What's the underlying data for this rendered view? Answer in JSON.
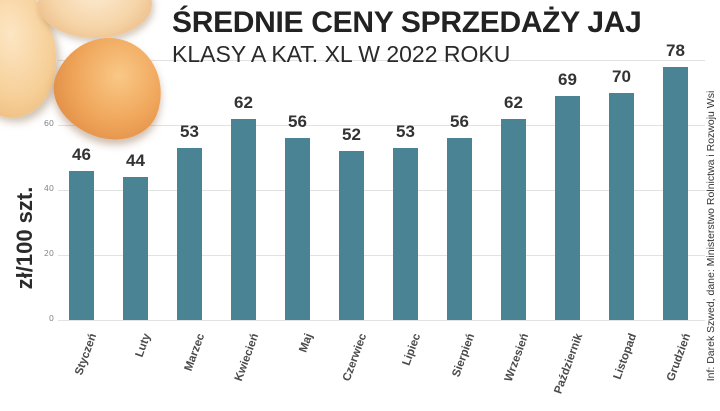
{
  "header": {
    "title": "ŚREDNIE CENY SPRZEDAŻY JAJ",
    "subtitle": "KLASY A KAT. XL W 2022 ROKU"
  },
  "axis": {
    "ylabel": "zł/100 szt.",
    "yticks": [
      "0",
      "20",
      "40",
      "60"
    ]
  },
  "credit": "Inf: Darek Szwed, dane: Ministerstwo Rolnictwa i Rozwoju Wsi",
  "colors": {
    "bar": "#4a8494",
    "title": "#222222",
    "gridline": "#e2e2e2"
  },
  "chart_data": {
    "type": "bar",
    "title": "ŚREDNIE CENY SPRZEDAŻY JAJ",
    "subtitle": "KLASY A KAT. XL W 2022 ROKU",
    "xlabel": "",
    "ylabel": "zł/100 szt.",
    "categories": [
      "Styczeń",
      "Luty",
      "Marzec",
      "Kwiecień",
      "Maj",
      "Czerwiec",
      "Lipiec",
      "Sierpień",
      "Wrzesień",
      "Październik",
      "Listopad",
      "Grudzień"
    ],
    "values": [
      46,
      44,
      53,
      62,
      56,
      52,
      53,
      56,
      62,
      69,
      70,
      78
    ],
    "value_labels": [
      "46",
      "44",
      "53",
      "62",
      "56",
      "52",
      "53",
      "56",
      "62",
      "69",
      "70",
      "78"
    ],
    "ylim": [
      0,
      80
    ],
    "yticks": [
      0,
      20,
      40,
      60
    ],
    "grid": true,
    "legend": null,
    "source": "Inf: Darek Szwed, dane: Ministerstwo Rolnictwa i Rozwoju Wsi"
  }
}
